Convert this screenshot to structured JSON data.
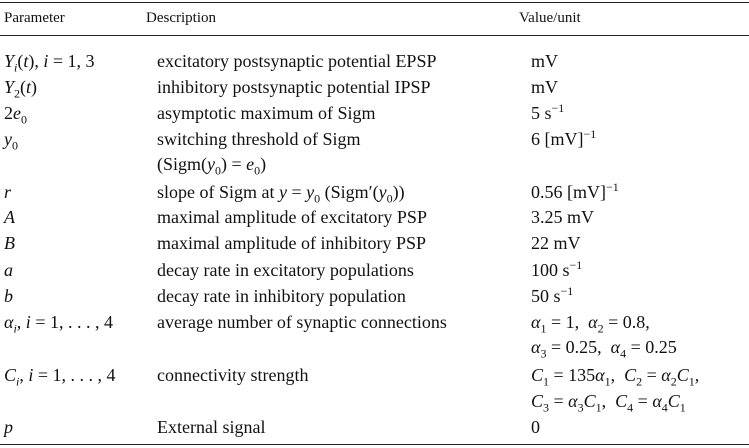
{
  "header": {
    "col1": "Parameter",
    "col2": "Description",
    "col3": "Value/unit"
  },
  "rows": [
    {
      "param": "Yi(t), i = 1, 3",
      "desc": "excitatory postsynaptic potential EPSP",
      "value": "mV"
    },
    {
      "param": "Y2(t)",
      "desc": "inhibitory postsynaptic potential IPSP",
      "value": "mV"
    },
    {
      "param": "2e0",
      "desc": "asymptotic maximum of Sigm",
      "value": "5 s−1"
    },
    {
      "param": "y0",
      "desc": "switching threshold of Sigm",
      "desc2": "(Sigm(y0) = e0)",
      "value": "6 [mV]−1"
    },
    {
      "param": "r",
      "desc": "slope of Sigm at y = y0 (Sigm′(y0))",
      "value": "0.56 [mV]−1"
    },
    {
      "param": "A",
      "desc": "maximal amplitude of excitatory PSP",
      "value": "3.25 mV"
    },
    {
      "param": "B",
      "desc": "maximal amplitude of inhibitory PSP",
      "value": "22 mV"
    },
    {
      "param": "a",
      "desc": "decay rate in excitatory populations",
      "value": "100 s−1"
    },
    {
      "param": "b",
      "desc": "decay rate in inhibitory population",
      "value": "50 s−1"
    },
    {
      "param": "αi, i = 1, . . . , 4",
      "desc": "average number of synaptic connections",
      "value": "α1 = 1,  α2 = 0.8,",
      "value2": "α3 = 0.25,  α4 = 0.25"
    },
    {
      "param": "Ci, i = 1, . . . , 4",
      "desc": "connectivity strength",
      "value": "C1 = 135α1,  C2 = α2C1,",
      "value2": "C3 = α3C1,  C4 = α4C1"
    },
    {
      "param": "p",
      "desc": "External signal",
      "value": "0"
    }
  ]
}
